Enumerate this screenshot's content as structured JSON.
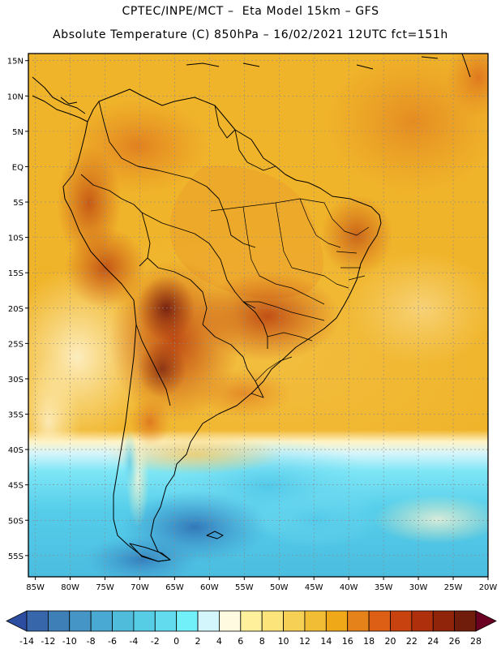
{
  "header": {
    "line1": "CPTEC/INPE/MCT –  Eta Model 15km – GFS",
    "line2": "Absolute Temperature (C) 850hPa – 16/02/2021 12UTC fct=151h"
  },
  "map": {
    "lon_range": [
      -86,
      -20
    ],
    "lat_range": [
      -58,
      16
    ],
    "lat_ticks": [
      {
        "value": 15,
        "label": "15N"
      },
      {
        "value": 10,
        "label": "10N"
      },
      {
        "value": 5,
        "label": "5N"
      },
      {
        "value": 0,
        "label": "EQ"
      },
      {
        "value": -5,
        "label": "5S"
      },
      {
        "value": -10,
        "label": "10S"
      },
      {
        "value": -15,
        "label": "15S"
      },
      {
        "value": -20,
        "label": "20S"
      },
      {
        "value": -25,
        "label": "25S"
      },
      {
        "value": -30,
        "label": "30S"
      },
      {
        "value": -35,
        "label": "35S"
      },
      {
        "value": -40,
        "label": "40S"
      },
      {
        "value": -45,
        "label": "45S"
      },
      {
        "value": -50,
        "label": "50S"
      },
      {
        "value": -55,
        "label": "55S"
      }
    ],
    "lon_ticks": [
      {
        "value": -85,
        "label": "85W"
      },
      {
        "value": -80,
        "label": "80W"
      },
      {
        "value": -75,
        "label": "75W"
      },
      {
        "value": -70,
        "label": "70W"
      },
      {
        "value": -65,
        "label": "65W"
      },
      {
        "value": -60,
        "label": "60W"
      },
      {
        "value": -55,
        "label": "55W"
      },
      {
        "value": -50,
        "label": "50W"
      },
      {
        "value": -45,
        "label": "45W"
      },
      {
        "value": -40,
        "label": "40W"
      },
      {
        "value": -35,
        "label": "35W"
      },
      {
        "value": -30,
        "label": "30W"
      },
      {
        "value": -25,
        "label": "25W"
      },
      {
        "value": -20,
        "label": "20W"
      }
    ]
  },
  "colorbar": {
    "levels": [
      "-14",
      "-12",
      "-10",
      "-8",
      "-6",
      "-4",
      "-2",
      "0",
      "2",
      "4",
      "6",
      "8",
      "10",
      "12",
      "14",
      "16",
      "18",
      "20",
      "22",
      "24",
      "26",
      "28"
    ],
    "colors": [
      "#2c4da0",
      "#3766aa",
      "#3f7fb8",
      "#4596c6",
      "#4aa9d2",
      "#4fbcdc",
      "#57cce5",
      "#62dbef",
      "#72f0fa",
      "#d2f6fb",
      "#fffae0",
      "#fff09c",
      "#fce37a",
      "#f6cf55",
      "#f0bd35",
      "#efa918",
      "#e6821a",
      "#dc5f15",
      "#c8420f",
      "#ad2f0c",
      "#8f240b",
      "#701d0c",
      "#6a0022"
    ]
  }
}
